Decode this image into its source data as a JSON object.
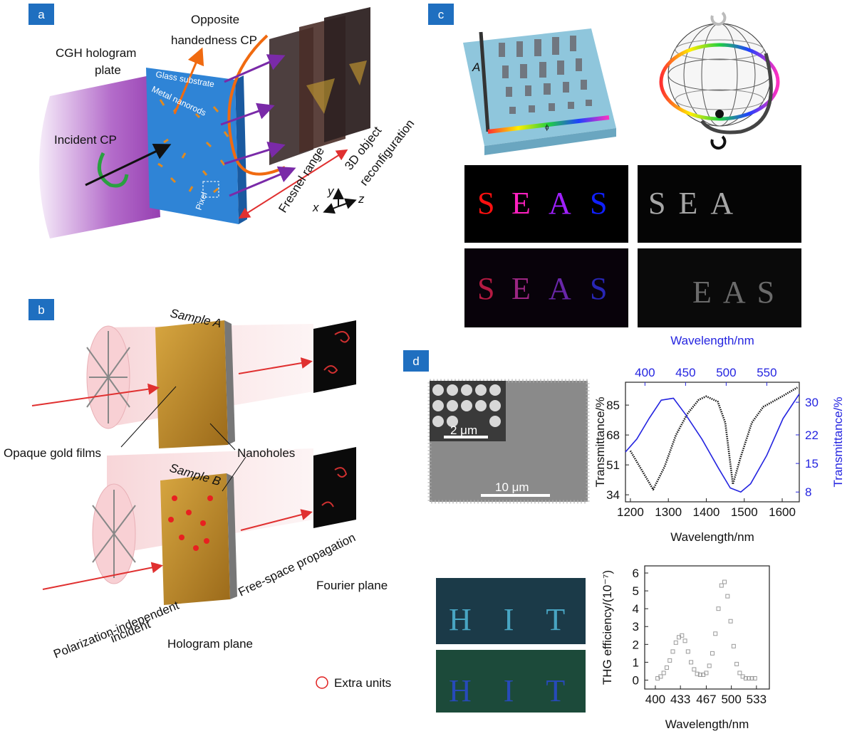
{
  "panels": {
    "a": {
      "label": "a",
      "plate_label": [
        "CGH hologram",
        "plate"
      ],
      "opposite_label": [
        "Opposite",
        "handedness CP"
      ],
      "incident_label": "Incident CP",
      "substrate_label": "Glass substrate",
      "nanorods_label": "Metal nanorods",
      "pixel_label": "Pixel",
      "fresnel_label": "Fresnel range",
      "object_label": [
        "3D object",
        "reconfiguration"
      ],
      "axes": [
        "x",
        "y",
        "z"
      ]
    },
    "b": {
      "label": "b",
      "sample_a": "Sample A",
      "sample_b": "Sample B",
      "nanoholes": "Nanoholes",
      "gold_films": "Opaque gold films",
      "propagation": "Free-space propagation",
      "fourier": "Fourier plane",
      "incident": [
        "Polarization-independent",
        "incident"
      ],
      "hologram_plane": "Hologram plane",
      "legend": "Extra units"
    },
    "c": {
      "label": "c",
      "amplitude_axis": "A",
      "phase_axis": "ϕ",
      "image_1": [
        "S",
        "E",
        "A",
        "S"
      ],
      "image_2": "SEA",
      "image_3": [
        "S",
        "E",
        "A",
        "S"
      ],
      "image_4": "EAS"
    },
    "d": {
      "label": "d",
      "scale_small": "2 μm",
      "scale_large": "10 μm",
      "image_top": "HIT",
      "image_bottom": "HIT"
    }
  },
  "chart_data": [
    {
      "type": "line",
      "xlabel": "Wavelength/nm",
      "x2label": "Wavelength/nm",
      "ylabel": "Transmittance/%",
      "y2label": "Transmittance/%",
      "xlim": [
        1187,
        1645
      ],
      "xticks": [
        1200,
        1300,
        1400,
        1500,
        1600
      ],
      "x2lim": [
        376,
        590
      ],
      "x2ticks": [
        400,
        450,
        500,
        550
      ],
      "ylim": [
        30,
        98
      ],
      "yticks": [
        34,
        51,
        68,
        85
      ],
      "y2lim": [
        5.6,
        34.9
      ],
      "y2ticks": [
        8,
        15,
        22,
        30
      ],
      "series": [
        {
          "color": "#111111",
          "style": "dotted",
          "x": [
            1200,
            1230,
            1260,
            1290,
            1320,
            1350,
            1380,
            1400,
            1430,
            1450,
            1470,
            1490,
            1520,
            1550,
            1600,
            1640
          ],
          "values": [
            59,
            48,
            37,
            50,
            68,
            80,
            88,
            90,
            87,
            75,
            40,
            55,
            75,
            84,
            90,
            95
          ]
        },
        {
          "color": "#2424e0",
          "style": "solid",
          "axis": "y2",
          "xaxis": "x2",
          "x": [
            376,
            390,
            405,
            420,
            435,
            450,
            470,
            490,
            505,
            518,
            530,
            550,
            570,
            590
          ],
          "values": [
            17.8,
            21,
            26,
            30.5,
            31,
            27,
            21,
            14,
            9,
            8,
            10,
            17,
            26,
            32
          ]
        }
      ]
    },
    {
      "type": "scatter",
      "xlabel": "Wavelength/nm",
      "ylabel": "THG efficiency/(10⁻⁷)",
      "xlim": [
        386,
        550
      ],
      "xticks": [
        400,
        433,
        467,
        500,
        533
      ],
      "ylim": [
        -0.5,
        6.4
      ],
      "yticks": [
        0,
        1,
        2,
        3,
        4,
        5,
        6
      ],
      "series": [
        {
          "color": "#9a9a9a",
          "marker": "square",
          "x": [
            403,
            407,
            411,
            415,
            419,
            423,
            427,
            431,
            435,
            439,
            443,
            447,
            451,
            455,
            459,
            463,
            467,
            471,
            475,
            479,
            483,
            487,
            491,
            495,
            499,
            503,
            507,
            511,
            515,
            519,
            523,
            527,
            531
          ],
          "values": [
            0.1,
            0.2,
            0.4,
            0.7,
            1.1,
            1.6,
            2.1,
            2.4,
            2.5,
            2.2,
            1.6,
            1.0,
            0.6,
            0.35,
            0.3,
            0.3,
            0.4,
            0.8,
            1.5,
            2.6,
            4.0,
            5.3,
            5.5,
            4.7,
            3.3,
            1.9,
            0.9,
            0.4,
            0.2,
            0.1,
            0.1,
            0.1,
            0.1
          ]
        }
      ]
    }
  ]
}
